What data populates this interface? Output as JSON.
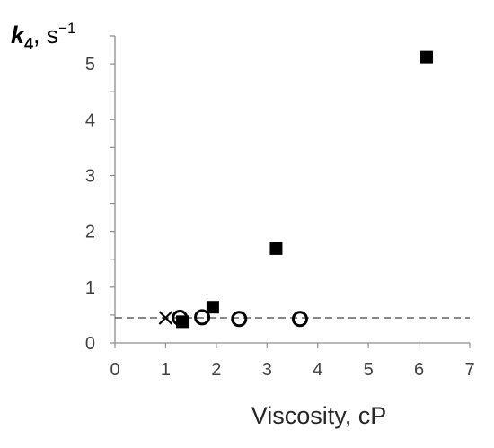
{
  "chart_data": {
    "type": "scatter",
    "title": "",
    "xlabel": "Viscosity, cP",
    "ylabel": {
      "symbol": "k",
      "subscript": "4",
      "separator": ",",
      "unit": "s",
      "unit_exponent": "−1"
    },
    "xlim": [
      0,
      7
    ],
    "ylim": [
      0,
      5.5
    ],
    "x_ticks": [
      "0",
      "1",
      "2",
      "3",
      "4",
      "5",
      "6",
      "7"
    ],
    "y_ticks": [
      "0",
      "1",
      "2",
      "3",
      "4",
      "5"
    ],
    "grid": false,
    "legend": "none",
    "series": [
      {
        "marker": "filled-square",
        "color": "#000000",
        "points": [
          {
            "x": 1.33,
            "y": 0.38
          },
          {
            "x": 1.93,
            "y": 0.64
          },
          {
            "x": 3.18,
            "y": 1.69
          },
          {
            "x": 6.15,
            "y": 5.12
          }
        ]
      },
      {
        "marker": "open-circle",
        "color": "#000000",
        "points": [
          {
            "x": 1.28,
            "y": 0.45
          },
          {
            "x": 1.72,
            "y": 0.46
          },
          {
            "x": 2.45,
            "y": 0.43
          },
          {
            "x": 3.65,
            "y": 0.43
          }
        ]
      },
      {
        "marker": "cross",
        "color": "#000000",
        "points": [
          {
            "x": 1.0,
            "y": 0.45
          }
        ]
      }
    ],
    "reference_line": {
      "style": "dashed",
      "y": 0.45,
      "x_from": 0,
      "x_to": 7
    }
  }
}
